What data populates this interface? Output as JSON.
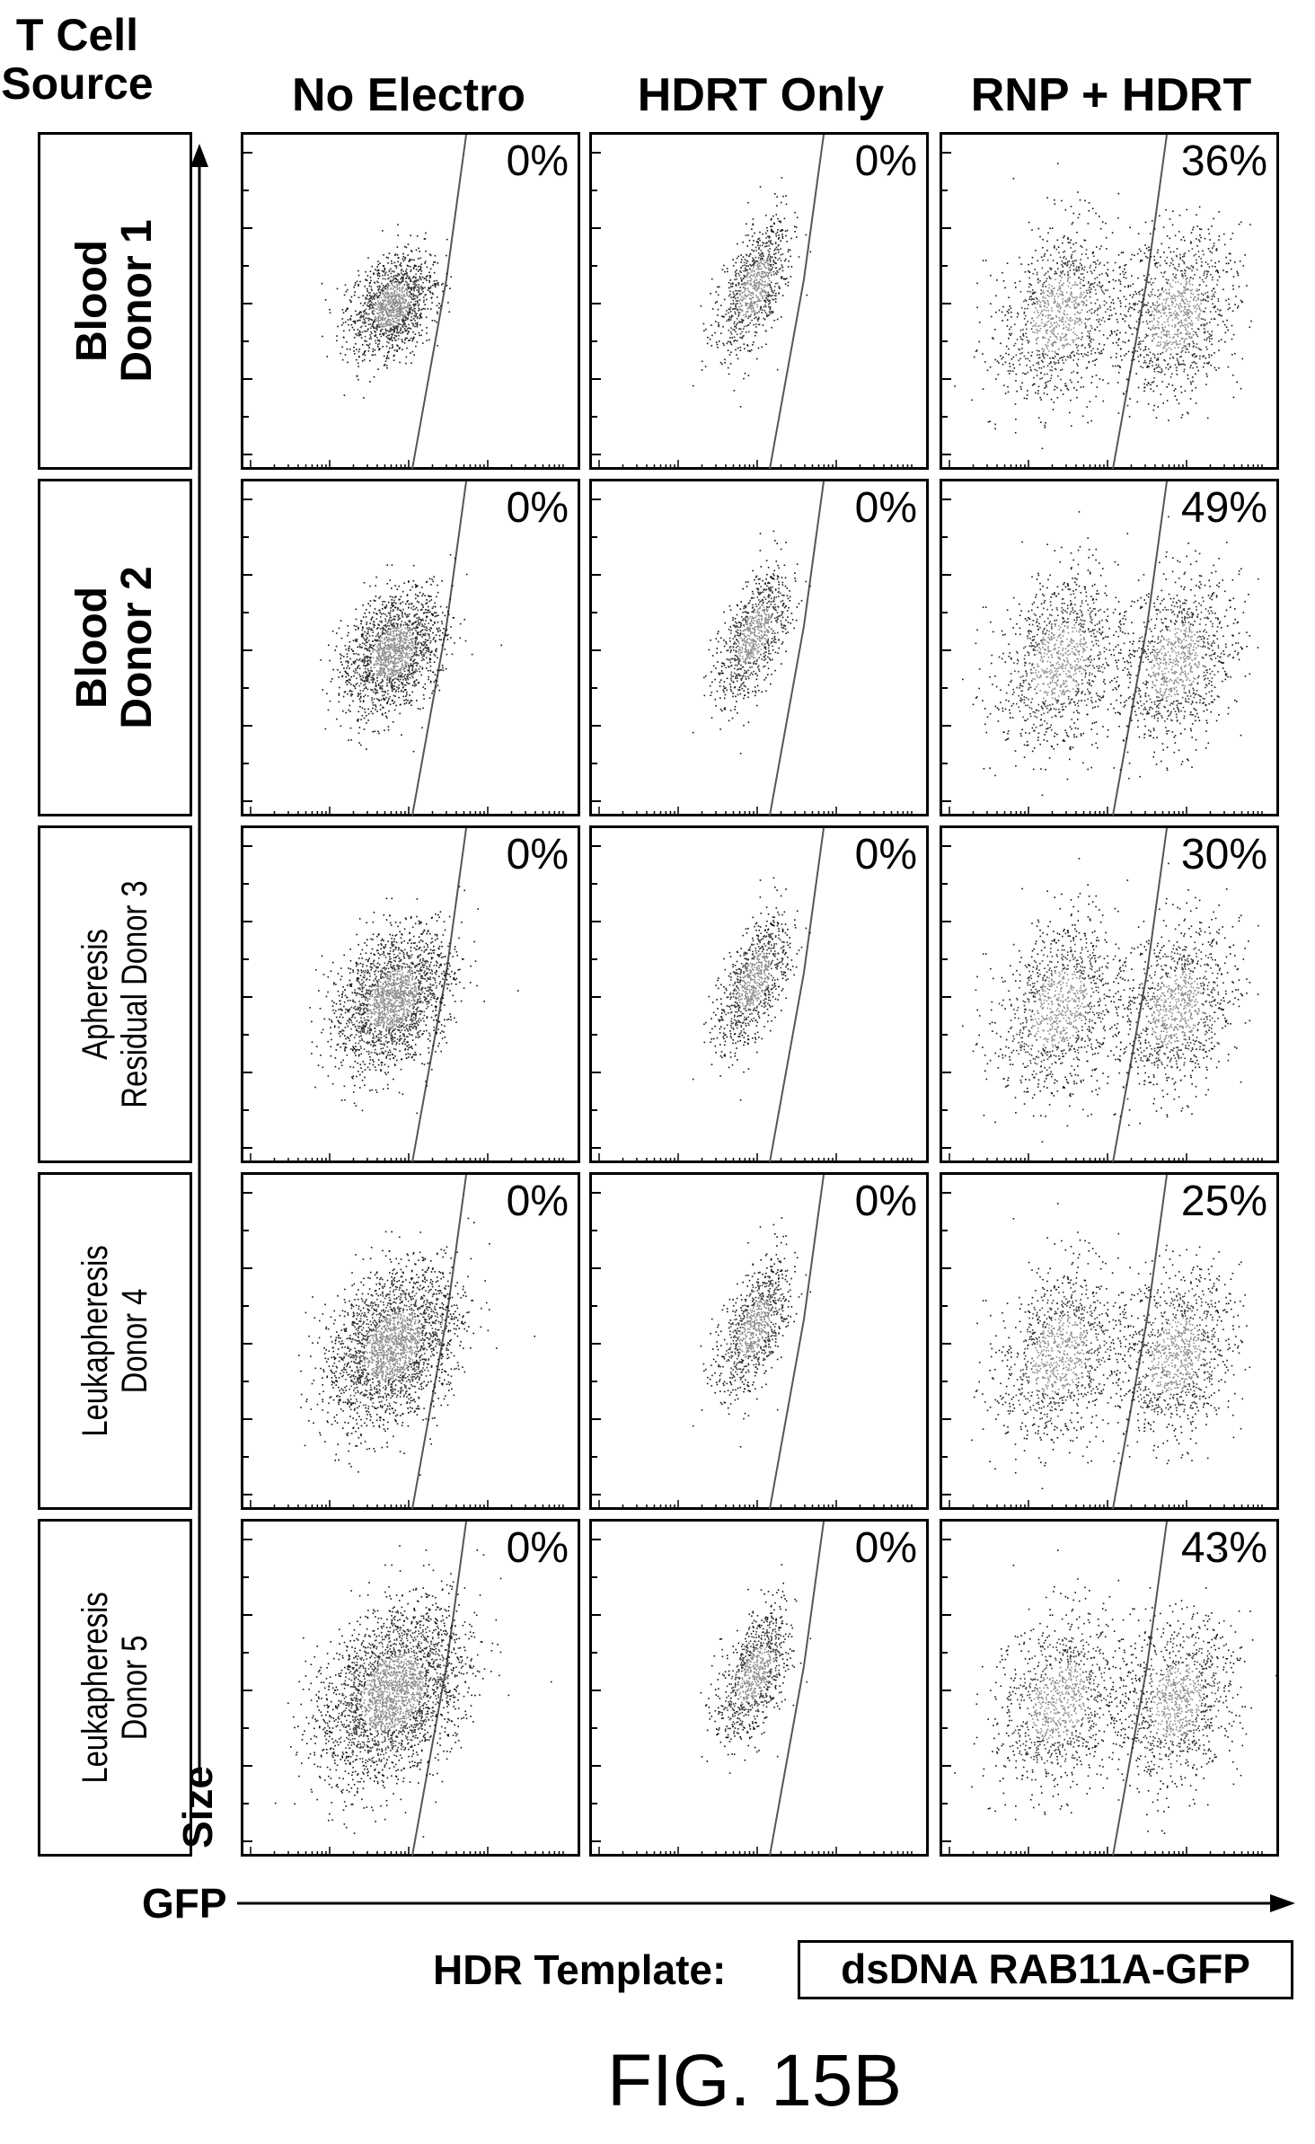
{
  "header": {
    "row_header_line1": "T Cell",
    "row_header_line2": "Source"
  },
  "columns": [
    "No Electro",
    "HDRT Only",
    "RNP + HDRT"
  ],
  "rows": [
    {
      "line1": "Blood",
      "line2": "Donor 1",
      "style": "big"
    },
    {
      "line1": "Blood",
      "line2": "Donor 2",
      "style": "big"
    },
    {
      "line1": "Apheresis",
      "line2": "Residual Donor 3",
      "style": "narrow"
    },
    {
      "line1": "Leukapheresis",
      "line2": "Donor 4",
      "style": "narrow"
    },
    {
      "line1": "Leukapheresis",
      "line2": "Donor 5",
      "style": "narrow"
    }
  ],
  "axes": {
    "y_label": "Size",
    "x_label": "GFP"
  },
  "footer": {
    "template_label": "HDR Template:",
    "template_value": "dsDNA RAB11A-GFP",
    "figure_label": "FIG. 15B"
  },
  "chart_data": {
    "type": "scatter",
    "subtype": "flow-cytometry-density-grid",
    "xlabel": "GFP",
    "ylabel": "Size",
    "rows": [
      "Blood Donor 1",
      "Blood Donor 2",
      "Apheresis Residual Donor 3",
      "Leukapheresis Donor 4",
      "Leukapheresis Donor 5"
    ],
    "columns": [
      "No Electro",
      "HDRT Only",
      "RNP + HDRT"
    ],
    "gfp_positive_percent": [
      [
        "0%",
        "0%",
        "36%"
      ],
      [
        "0%",
        "0%",
        "49%"
      ],
      [
        "0%",
        "0%",
        "30%"
      ],
      [
        "0%",
        "0%",
        "25%"
      ],
      [
        "0%",
        "0%",
        "43%"
      ]
    ],
    "colors": {
      "points": "#222222",
      "dense_core": "#8a8a8a",
      "gate": "#555555"
    }
  }
}
